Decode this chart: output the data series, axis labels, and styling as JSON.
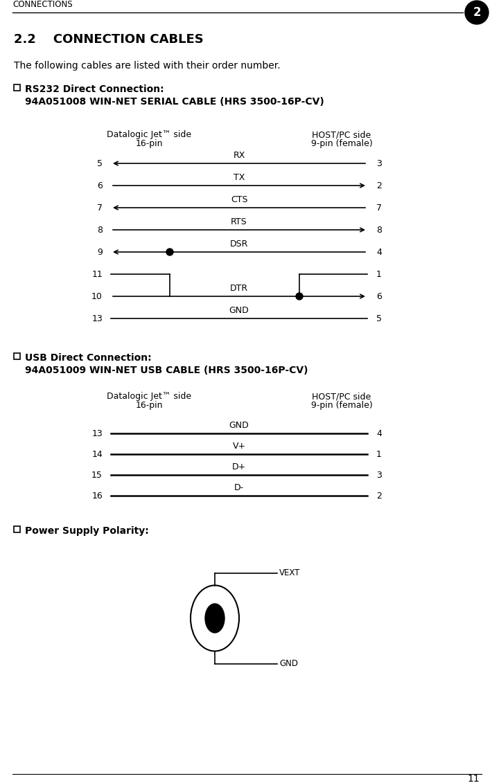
{
  "page_title": "CONNECTIONS",
  "chapter_num": "2",
  "section_title": "2.2    CONNECTION CABLES",
  "intro_text": "The following cables are listed with their order number.",
  "rs232_bullet": "RS232 Direct Connection:",
  "rs232_cable": "94A051008 WIN-NET SERIAL CABLE (HRS 3500-16P-CV)",
  "usb_bullet": "USB Direct Connection:",
  "usb_cable": "94A051009 WIN-NET USB CABLE (HRS 3500-16P-CV)",
  "power_bullet": "Power Supply Polarity:",
  "dj_label_line1": "Datalogic Jet™ side",
  "dj_label_line2": "16-pin",
  "host_label_line1": "HOST/PC side",
  "host_label_line2": "9-pin (female)",
  "rs232_rows": [
    {
      "signal": "RX",
      "lpin": "5",
      "rpin": "3",
      "dir": "left"
    },
    {
      "signal": "TX",
      "lpin": "6",
      "rpin": "2",
      "dir": "right"
    },
    {
      "signal": "CTS",
      "lpin": "7",
      "rpin": "7",
      "dir": "left"
    },
    {
      "signal": "RTS",
      "lpin": "8",
      "rpin": "8",
      "dir": "right"
    },
    {
      "signal": "DSR",
      "lpin": "9",
      "rpin": "4",
      "dir": "left",
      "junc_left": true
    },
    {
      "signal": "",
      "lpin": "11",
      "rpin": "1",
      "dir": "none",
      "loop": true
    },
    {
      "signal": "DTR",
      "lpin": "10",
      "rpin": "6",
      "dir": "right",
      "junc_right": true
    },
    {
      "signal": "GND",
      "lpin": "13",
      "rpin": "5",
      "dir": "none"
    }
  ],
  "usb_rows": [
    {
      "signal": "GND",
      "lpin": "13",
      "rpin": "4"
    },
    {
      "signal": "V+",
      "lpin": "14",
      "rpin": "1"
    },
    {
      "signal": "D+",
      "lpin": "15",
      "rpin": "3"
    },
    {
      "signal": "D-",
      "lpin": "16",
      "rpin": "2"
    }
  ],
  "page_number": "11",
  "bg_color": "#ffffff"
}
